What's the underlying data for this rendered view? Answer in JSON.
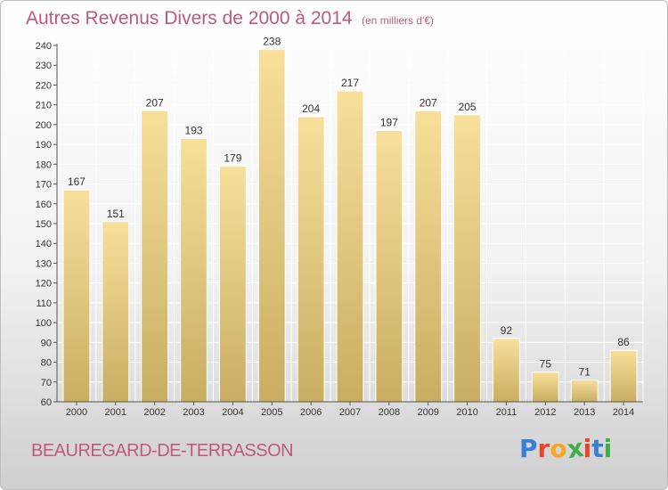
{
  "header": {
    "title": "Autres Revenus Divers de 2000 à 2014",
    "subtitle": "(en milliers d'€)"
  },
  "footer": {
    "commune": "BEAUREGARD-DE-TERRASSON",
    "brand": "Proxiti",
    "brand_colors": [
      "#3a7fd5",
      "#e8452c",
      "#f5a623",
      "#3fae49",
      "#e8452c",
      "#3a7fd5",
      "#3fae49"
    ]
  },
  "colors": {
    "title": "#c0587e",
    "bar_fill_top": "#f8df9a",
    "bar_fill_bottom": "#c9ad62",
    "grid": "#ffffff"
  },
  "chart_data": {
    "type": "bar",
    "categories": [
      "2000",
      "2001",
      "2002",
      "2003",
      "2004",
      "2005",
      "2006",
      "2007",
      "2008",
      "2009",
      "2010",
      "2011",
      "2012",
      "2013",
      "2014"
    ],
    "values": [
      167,
      151,
      207,
      193,
      179,
      238,
      204,
      217,
      197,
      207,
      205,
      92,
      75,
      71,
      86
    ],
    "ylim": [
      60,
      240
    ],
    "yticks": [
      60,
      70,
      80,
      90,
      100,
      110,
      120,
      130,
      140,
      150,
      160,
      170,
      180,
      190,
      200,
      210,
      220,
      230,
      240
    ],
    "grid": true,
    "data_labels": true
  }
}
